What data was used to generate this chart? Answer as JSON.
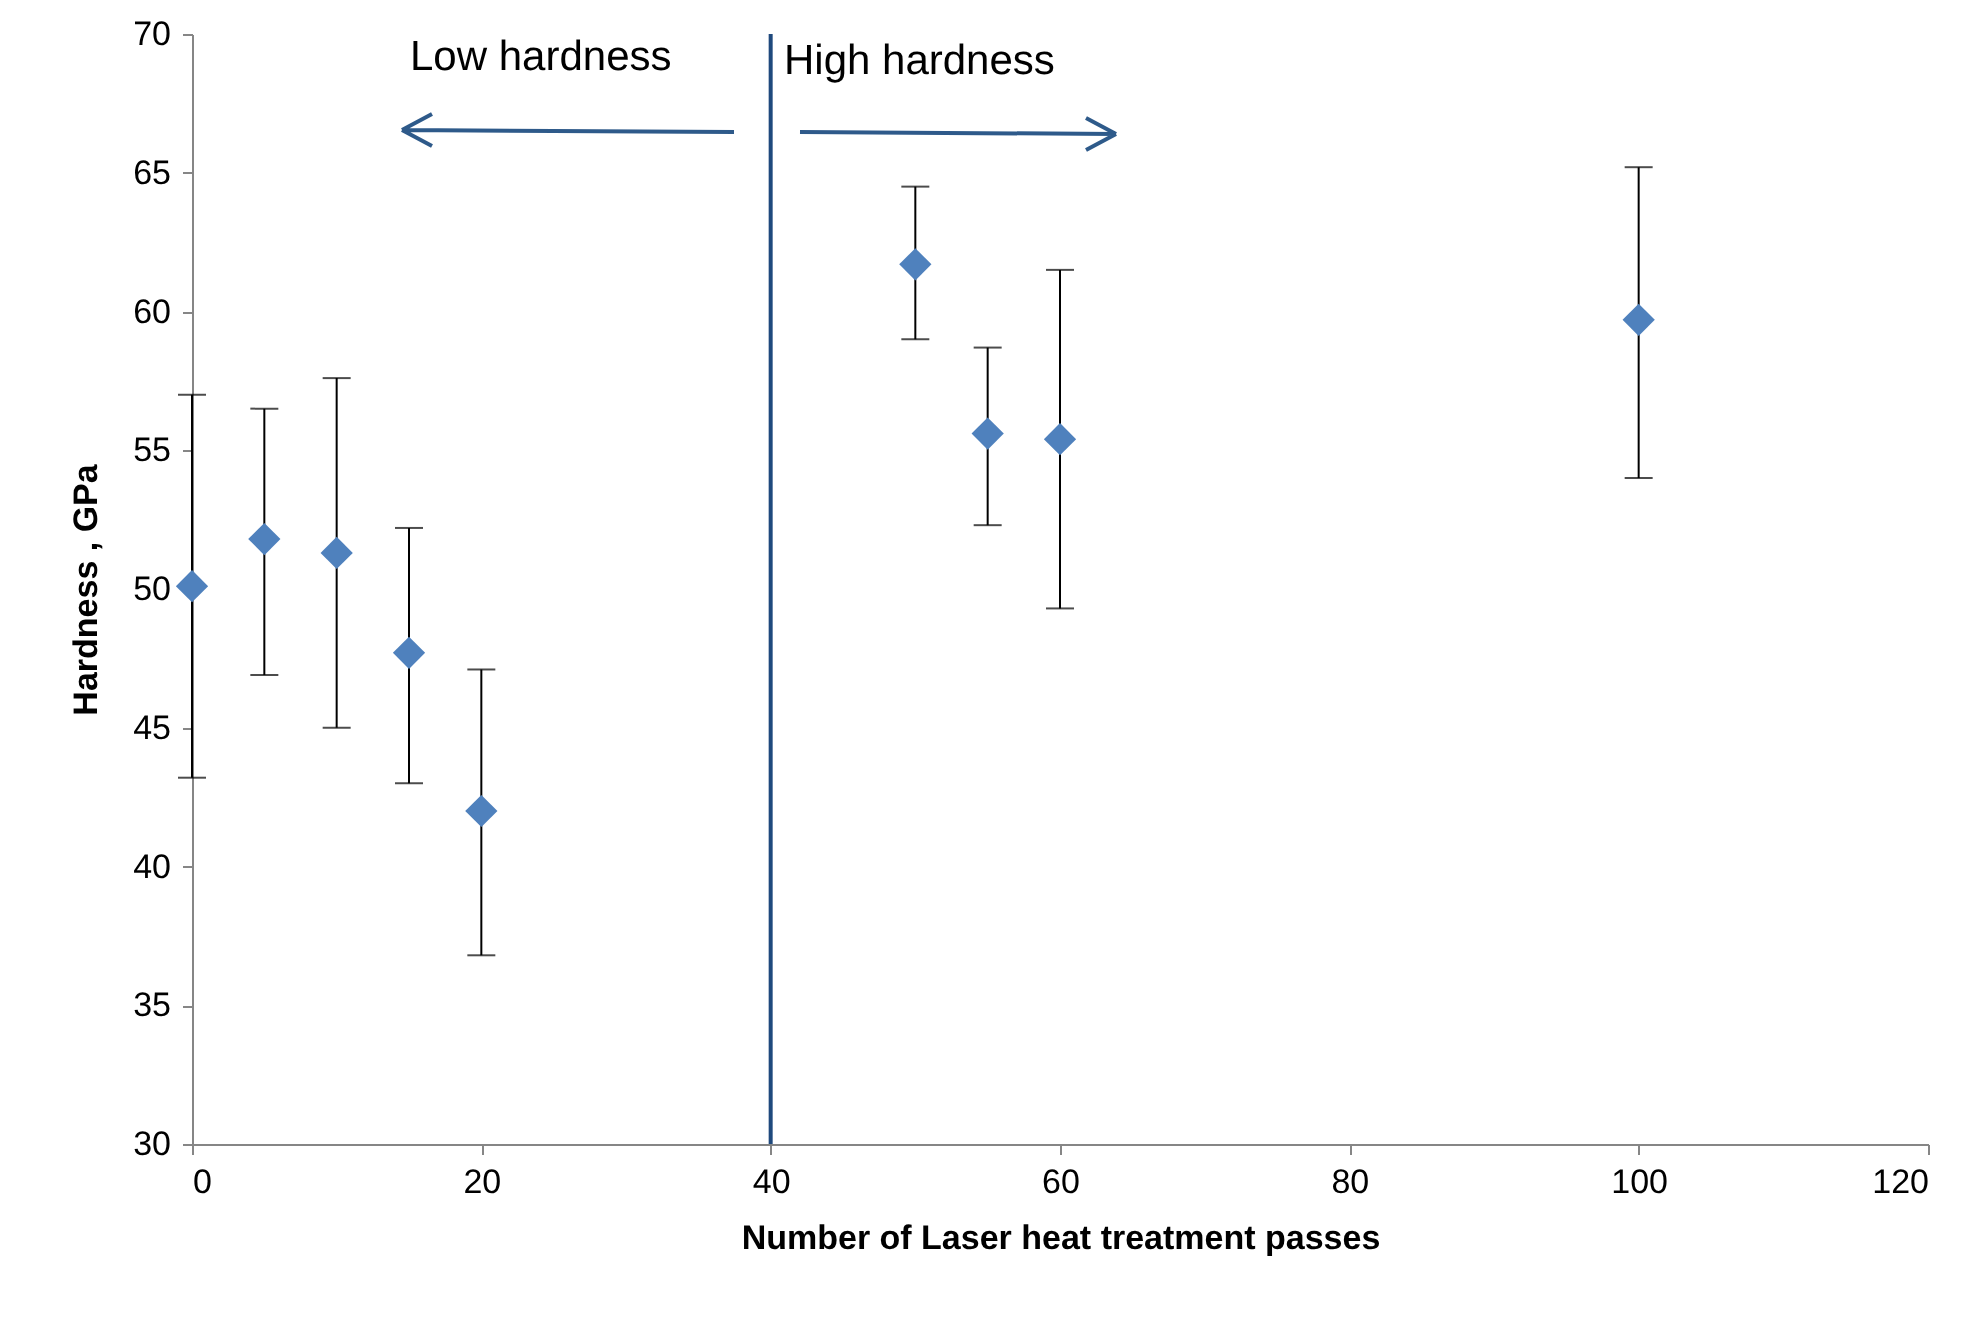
{
  "chart_data": {
    "type": "scatter",
    "xlabel": "Number of Laser heat treatment passes",
    "ylabel": "Hardness , GPa",
    "x": [
      0,
      5,
      10,
      15,
      20,
      50,
      55,
      60,
      100
    ],
    "series": [
      {
        "color": "#4f81bd",
        "values": [
          50.1,
          51.8,
          51.3,
          47.7,
          42.0,
          61.7,
          55.6,
          55.4,
          59.7
        ],
        "errors": [
          [
            43.2,
            57.0
          ],
          [
            46.9,
            56.5
          ],
          [
            45.0,
            57.6
          ],
          [
            43.0,
            52.2
          ],
          [
            36.8,
            47.1
          ],
          [
            59.0,
            64.5
          ],
          [
            52.3,
            58.7
          ],
          [
            49.3,
            61.5
          ],
          [
            54.0,
            65.2
          ]
        ]
      }
    ],
    "marker": "diamond",
    "grid": false,
    "xlim": [
      0,
      120
    ],
    "xticks": [
      0,
      20,
      40,
      60,
      80,
      100,
      120
    ],
    "ylim": [
      30,
      70
    ],
    "yticks": [
      30,
      35,
      40,
      45,
      50,
      55,
      60,
      65,
      70
    ],
    "ref_lines": [
      {
        "axis": "x",
        "value": 40,
        "color": "#1f497d"
      }
    ],
    "annotations": [
      "Low hardness",
      "High hardness"
    ]
  }
}
